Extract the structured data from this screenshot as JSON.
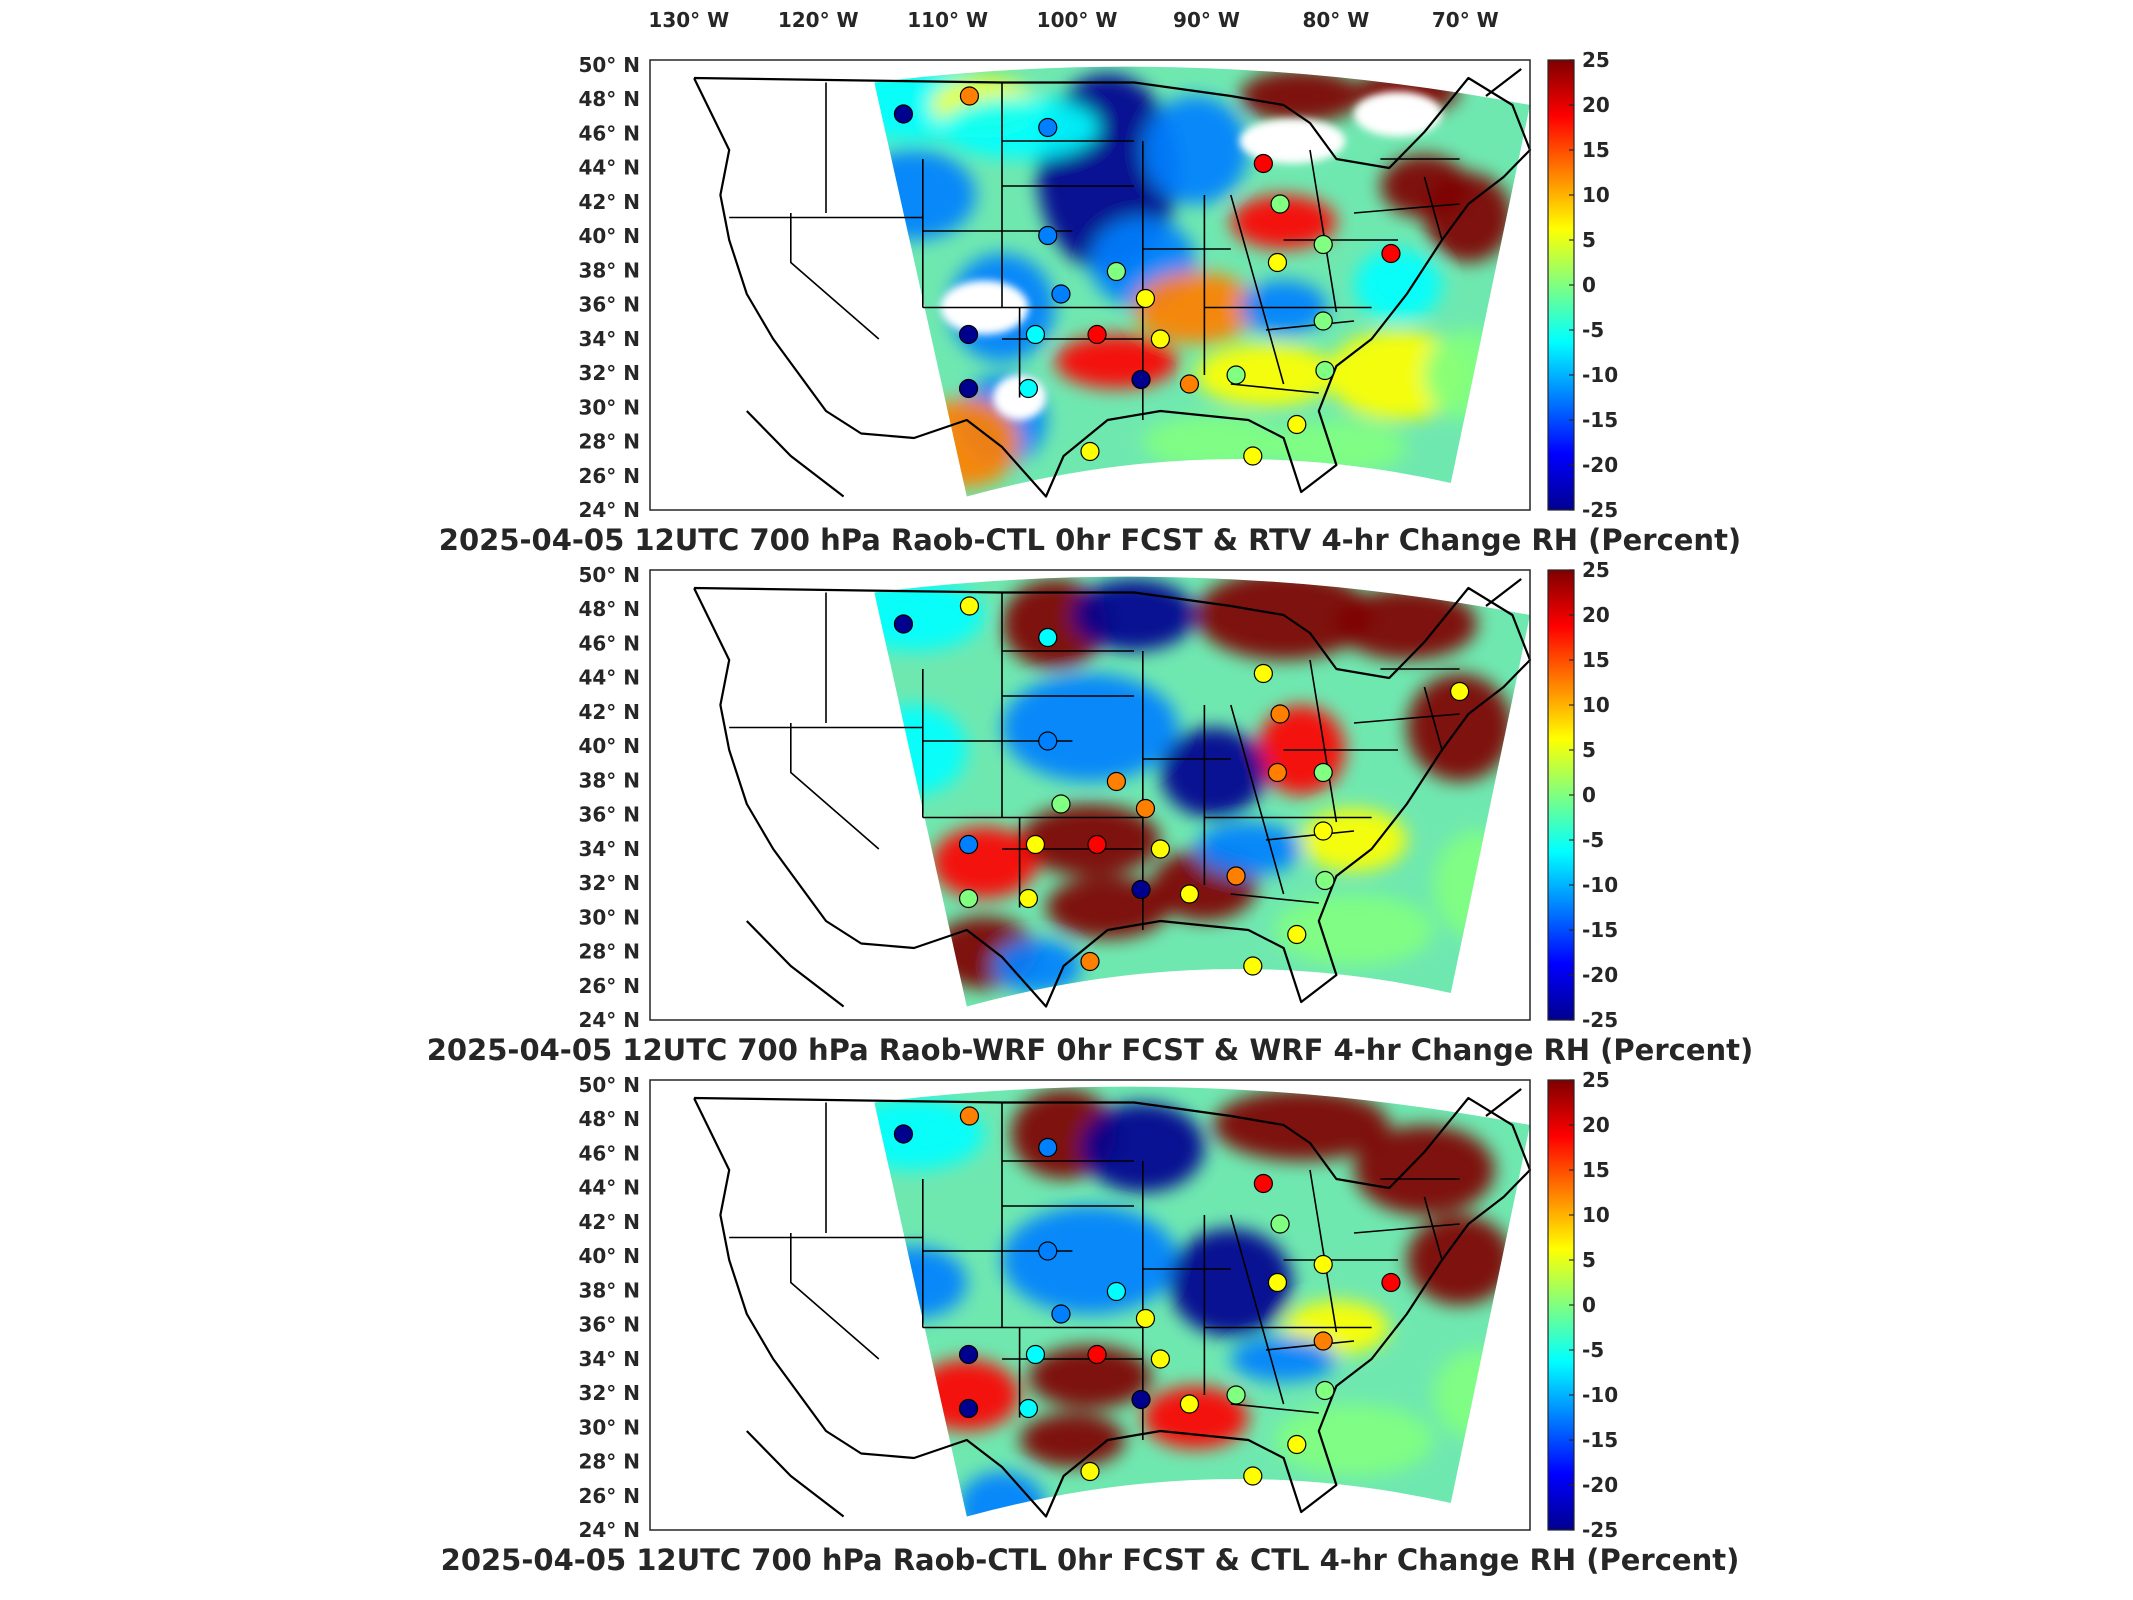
{
  "lon_ticks": [
    "130",
    "120",
    "110",
    "100",
    "90",
    "80",
    "70"
  ],
  "lon_hemisphere": "W",
  "lat_ticks": [
    "50",
    "48",
    "46",
    "44",
    "42",
    "40",
    "38",
    "36",
    "34",
    "32",
    "30",
    "28",
    "26",
    "24"
  ],
  "lat_hemisphere": "N",
  "degree_symbol": "°",
  "colorbar": {
    "ticks": [
      "25",
      "20",
      "15",
      "10",
      "5",
      "0",
      "-5",
      "-10",
      "-15",
      "-20",
      "-25"
    ],
    "range": [
      -25,
      25
    ],
    "colormap": "jet"
  },
  "panels": [
    {
      "title": "2025-04-05 12UTC 700 hPa Raob-CTL 0hr FCST & RTV 4-hr Change RH (Percent)"
    },
    {
      "title": "2025-04-05 12UTC 700 hPa Raob-WRF 0hr FCST & WRF 4-hr Change RH (Percent)"
    },
    {
      "title": "2025-04-05 12UTC 700 hPa Raob-CTL 0hr FCST & CTL 4-hr Change RH (Percent)"
    }
  ],
  "colors": {
    "dark_red": "#7f0000",
    "red": "#ff0000",
    "orange": "#ff8000",
    "yellow": "#ffff00",
    "green_cyan": "#80ff80",
    "cyan": "#00ffff",
    "blue": "#0080ff",
    "dark_blue": "#00008f"
  }
}
